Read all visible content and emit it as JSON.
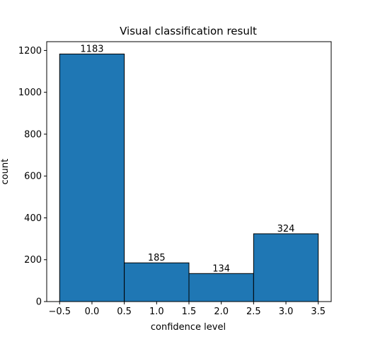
{
  "chart_data": {
    "type": "bar",
    "title": "Visual classification result",
    "xlabel": "confidence level",
    "ylabel": "count",
    "bins": [
      {
        "x0": -0.5,
        "x1": 0.5,
        "value": 1183,
        "label": "1183"
      },
      {
        "x0": 0.5,
        "x1": 1.5,
        "value": 185,
        "label": "185"
      },
      {
        "x0": 1.5,
        "x1": 2.5,
        "value": 134,
        "label": "134"
      },
      {
        "x0": 2.5,
        "x1": 3.5,
        "value": 324,
        "label": "324"
      }
    ],
    "xlim": [
      -0.7,
      3.7
    ],
    "ylim": [
      0,
      1242
    ],
    "xticks": [
      -0.5,
      0.0,
      0.5,
      1.0,
      1.5,
      2.0,
      2.5,
      3.0,
      3.5
    ],
    "xtick_labels": [
      "−0.5",
      "0.0",
      "0.5",
      "1.0",
      "1.5",
      "2.0",
      "2.5",
      "3.0",
      "3.5"
    ],
    "yticks": [
      0,
      200,
      400,
      600,
      800,
      1000,
      1200
    ],
    "ytick_labels": [
      "0",
      "200",
      "400",
      "600",
      "800",
      "1000",
      "1200"
    ],
    "bar_color": "#1f77b4",
    "edge_color": "#000000",
    "grid": false,
    "legend": "none"
  }
}
